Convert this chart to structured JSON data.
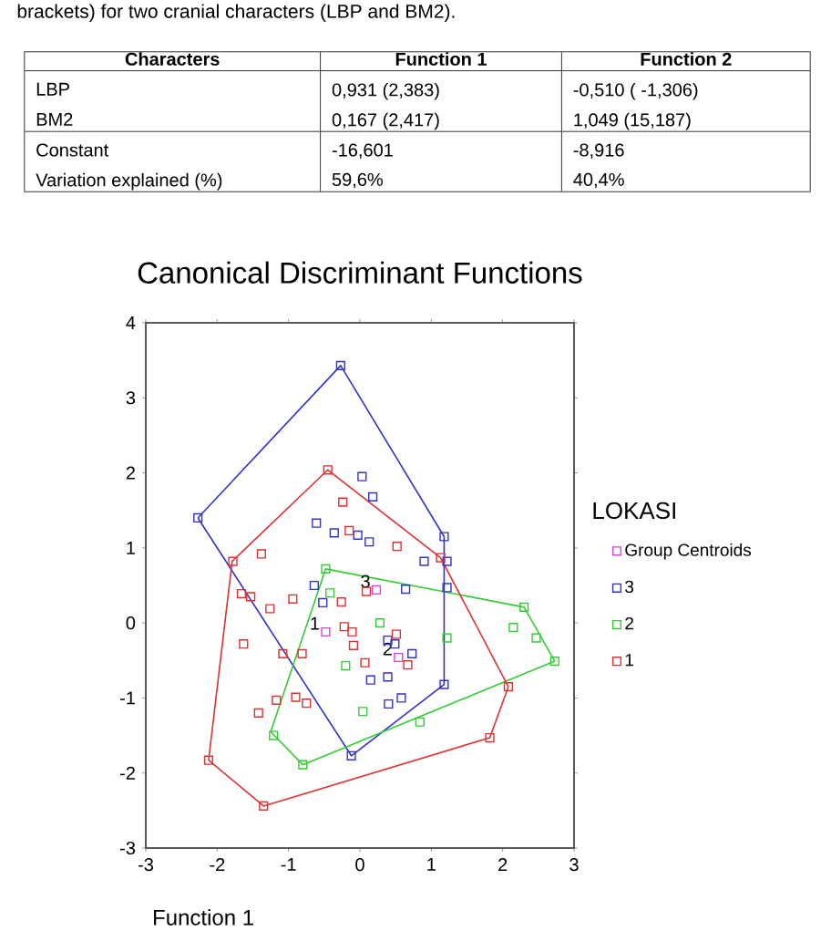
{
  "chart_data": {
    "type": "scatter",
    "title": "Canonical Discriminant Functions",
    "xlabel": "Function 1",
    "legend_title": "LOKASI",
    "xlim": [
      -3,
      3
    ],
    "ylim": [
      -3,
      4
    ],
    "xticks": [
      -3,
      -2,
      -1,
      0,
      1,
      2,
      3
    ],
    "yticks": [
      -3,
      -2,
      -1,
      0,
      1,
      2,
      3,
      4
    ],
    "legend": "right",
    "marker": "square",
    "grid": false,
    "series": [
      {
        "name": "Group Centroids",
        "color": "#e040e0",
        "x": [
          -0.48,
          0.23,
          0.54
        ],
        "values": [
          -0.12,
          0.44,
          -0.46
        ]
      },
      {
        "name": "3",
        "color": "#3232c8",
        "x": [
          -2.27,
          -0.27,
          0.03,
          0.18,
          -0.61,
          -0.36,
          -0.03,
          0.13,
          1.18,
          0.9,
          1.22,
          -0.64,
          -0.52,
          0.64,
          1.22,
          0.39,
          0.49,
          0.73,
          0.15,
          0.39,
          0.4,
          0.58,
          1.18,
          -0.12
        ],
        "values": [
          1.4,
          3.43,
          1.95,
          1.68,
          1.33,
          1.2,
          1.17,
          1.08,
          1.15,
          0.82,
          0.82,
          0.5,
          0.27,
          0.45,
          0.47,
          -0.23,
          -0.28,
          -0.41,
          -0.76,
          -0.72,
          -1.08,
          -1.0,
          -0.82,
          -1.77
        ]
      },
      {
        "name": "2",
        "color": "#33cc33",
        "x": [
          -0.48,
          -0.42,
          0.28,
          1.22,
          -0.2,
          0.04,
          -1.21,
          -0.8,
          0.84,
          2.3,
          2.15,
          2.47,
          2.73
        ],
        "values": [
          0.72,
          0.4,
          0.0,
          -0.2,
          -0.57,
          -1.18,
          -1.5,
          -1.89,
          -1.32,
          0.21,
          -0.06,
          -0.2,
          -0.51
        ]
      },
      {
        "name": "1",
        "color": "#e03030",
        "x": [
          -0.45,
          -0.24,
          -0.15,
          0.52,
          1.13,
          -1.38,
          -1.78,
          -1.66,
          -1.53,
          -1.26,
          -0.94,
          -0.26,
          -0.22,
          -0.11,
          -0.09,
          0.09,
          0.51,
          0.07,
          0.67,
          -1.63,
          -1.08,
          -0.81,
          -1.17,
          -0.9,
          -0.75,
          -1.42,
          -2.12,
          -1.35,
          1.82,
          2.08
        ],
        "values": [
          2.04,
          1.61,
          1.23,
          1.02,
          0.87,
          0.92,
          0.82,
          0.39,
          0.35,
          0.19,
          0.32,
          0.28,
          -0.05,
          -0.12,
          -0.3,
          0.42,
          -0.15,
          -0.53,
          -0.56,
          -0.28,
          -0.41,
          -0.41,
          -1.03,
          -0.99,
          -1.07,
          -1.2,
          -1.83,
          -2.44,
          -1.53,
          -0.85
        ]
      },
      {
        "type": "line",
        "marker": "none",
        "color": "#3232c8",
        "x": [
          -2.27,
          -0.27,
          1.18
        ],
        "values": [
          1.4,
          3.43,
          1.15
        ]
      },
      {
        "type": "line",
        "marker": "none",
        "color": "#3232c8",
        "x": [
          -2.27,
          -0.12,
          1.18,
          1.18
        ],
        "values": [
          1.4,
          -1.77,
          -0.82,
          1.15
        ]
      },
      {
        "type": "line",
        "marker": "none",
        "color": "#33cc33",
        "x": [
          -1.25,
          -0.48,
          2.3,
          2.73
        ],
        "values": [
          -1.45,
          0.72,
          0.21,
          -0.51
        ]
      },
      {
        "type": "line",
        "marker": "none",
        "color": "#33cc33",
        "x": [
          -1.25,
          -0.8,
          2.73
        ],
        "values": [
          -1.45,
          -1.89,
          -0.51
        ]
      },
      {
        "type": "line",
        "marker": "none",
        "color": "#e03030",
        "x": [
          -2.12,
          -1.79,
          -0.45,
          1.13,
          2.08
        ],
        "values": [
          -1.83,
          0.82,
          2.04,
          0.87,
          -0.85
        ]
      },
      {
        "type": "line",
        "marker": "none",
        "color": "#e03030",
        "x": [
          -2.12,
          -1.35,
          1.82,
          2.08
        ],
        "values": [
          -1.83,
          -2.44,
          -1.53,
          -0.85
        ]
      }
    ],
    "annotations": [
      "brackets) for two cranial characters (LBP and BM2).",
      "Characters",
      "Function 1",
      "Function 2",
      "LBP",
      "0,931 (2,383)",
      "-0,510 ( -1,306)",
      "BM2",
      "0,167 (2,417)",
      "1,049 (15,187)",
      "Constant",
      "-16,601",
      "-8,916",
      "Variation explained (%)",
      "59,6%",
      "40,4%",
      {
        "text": "1",
        "x": -0.48,
        "y": -0.12
      },
      {
        "text": "3",
        "x": 0.23,
        "y": 0.44
      },
      {
        "text": "2",
        "x": 0.54,
        "y": -0.46
      }
    ]
  }
}
